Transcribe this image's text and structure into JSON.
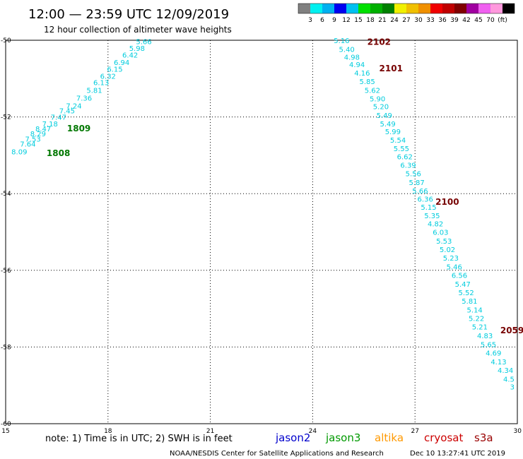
{
  "header": {
    "title": "12:00 — 23:59 UTC 12/09/2019",
    "subtitle": "12 hour collection of altimeter wave heights"
  },
  "colorbar": {
    "colors": [
      "#808080",
      "#00f0f0",
      "#00b0f0",
      "#0000f0",
      "#00c0f0",
      "#00e000",
      "#00b000",
      "#008000",
      "#f0f000",
      "#f0c000",
      "#f09000",
      "#f00000",
      "#c00000",
      "#800000",
      "#a000a0",
      "#f060f0",
      "#ff99dd",
      "#000000"
    ],
    "labels": [
      "3",
      "6",
      "9",
      "12",
      "15",
      "18",
      "21",
      "24",
      "27",
      "30",
      "33",
      "36",
      "39",
      "42",
      "45",
      "70",
      "(ft)"
    ]
  },
  "note": "note: 1) Time is in UTC; 2) SWH is in feet",
  "satellites": [
    {
      "name": "jason2",
      "color": "#0000cc"
    },
    {
      "name": "jason3",
      "color": "#009900"
    },
    {
      "name": "altika",
      "color": "#ff9900"
    },
    {
      "name": "cryosat",
      "color": "#cc0000"
    },
    {
      "name": "s3a",
      "color": "#990000"
    }
  ],
  "footer": {
    "credit": "NOAA/NESDIS Center for Satellite Applications and Research",
    "timestamp": "Dec 10 13:27:41 UTC 2019"
  },
  "chart_data": {
    "type": "scatter",
    "x_ticks": [
      "15",
      "18",
      "21",
      "24",
      "27",
      "30"
    ],
    "y_ticks": [
      "-50",
      "-52",
      "-54",
      "-56",
      "-58",
      "-60"
    ],
    "xlim": [
      15,
      30
    ],
    "ylim": [
      -60,
      -50
    ],
    "grid": true,
    "track_color": "#00ccdd",
    "series": [
      {
        "points": [
          {
            "x": 15.4,
            "y": -52.9,
            "v": "8.09"
          },
          {
            "x": 15.65,
            "y": -52.7,
            "v": "7.64"
          },
          {
            "x": 15.8,
            "y": -52.57,
            "v": "7.53"
          },
          {
            "x": 15.95,
            "y": -52.43,
            "v": "8.29"
          },
          {
            "x": 16.1,
            "y": -52.3,
            "v": "8.47"
          },
          {
            "x": 16.3,
            "y": -52.17,
            "v": "7.18"
          },
          {
            "x": 16.55,
            "y": -52.0,
            "v": "7.47"
          },
          {
            "x": 16.8,
            "y": -51.83,
            "v": "7.45"
          },
          {
            "x": 17.0,
            "y": -51.7,
            "v": "7.24"
          },
          {
            "x": 17.3,
            "y": -51.5,
            "v": "7.36"
          },
          {
            "x": 17.6,
            "y": -51.3,
            "v": "5.81"
          },
          {
            "x": 17.8,
            "y": -51.1,
            "v": "6.13"
          },
          {
            "x": 18.0,
            "y": -50.93,
            "v": "6.32"
          },
          {
            "x": 18.2,
            "y": -50.75,
            "v": "6.15"
          },
          {
            "x": 18.4,
            "y": -50.57,
            "v": "6.94"
          },
          {
            "x": 18.65,
            "y": -50.38,
            "v": "6.42"
          },
          {
            "x": 18.85,
            "y": -50.2,
            "v": "5.98"
          },
          {
            "x": 19.05,
            "y": -50.03,
            "v": "5.66"
          }
        ]
      },
      {
        "points": [
          {
            "x": 24.85,
            "y": -50.0,
            "v": "5.16"
          },
          {
            "x": 25.0,
            "y": -50.23,
            "v": "5.40"
          },
          {
            "x": 25.15,
            "y": -50.43,
            "v": "4.98"
          },
          {
            "x": 25.3,
            "y": -50.63,
            "v": "4.94"
          },
          {
            "x": 25.45,
            "y": -50.85,
            "v": "4.16"
          },
          {
            "x": 25.6,
            "y": -51.07,
            "v": "5.85"
          },
          {
            "x": 25.75,
            "y": -51.3,
            "v": "5.62"
          },
          {
            "x": 25.9,
            "y": -51.52,
            "v": "5.90"
          },
          {
            "x": 26.0,
            "y": -51.72,
            "v": "5.20"
          },
          {
            "x": 26.1,
            "y": -51.95,
            "v": "5.49"
          },
          {
            "x": 26.2,
            "y": -52.17,
            "v": "5.49"
          },
          {
            "x": 26.35,
            "y": -52.38,
            "v": "5.99"
          },
          {
            "x": 26.5,
            "y": -52.6,
            "v": "5.54"
          },
          {
            "x": 26.6,
            "y": -52.82,
            "v": "5.55"
          },
          {
            "x": 26.7,
            "y": -53.03,
            "v": "6.62"
          },
          {
            "x": 26.8,
            "y": -53.25,
            "v": "6.39"
          },
          {
            "x": 26.95,
            "y": -53.47,
            "v": "5.56"
          },
          {
            "x": 27.05,
            "y": -53.7,
            "v": "5.87"
          },
          {
            "x": 27.15,
            "y": -53.92,
            "v": "5.66"
          },
          {
            "x": 27.3,
            "y": -54.13,
            "v": "6.36"
          },
          {
            "x": 27.4,
            "y": -54.35,
            "v": "5.15"
          },
          {
            "x": 27.5,
            "y": -54.57,
            "v": "5.35"
          },
          {
            "x": 27.6,
            "y": -54.78,
            "v": "4.82"
          },
          {
            "x": 27.75,
            "y": -55.0,
            "v": "6.03"
          },
          {
            "x": 27.85,
            "y": -55.23,
            "v": "5.53"
          },
          {
            "x": 27.95,
            "y": -55.45,
            "v": "5.02"
          },
          {
            "x": 28.05,
            "y": -55.67,
            "v": "5.23"
          },
          {
            "x": 28.15,
            "y": -55.9,
            "v": "5.46"
          },
          {
            "x": 28.3,
            "y": -56.12,
            "v": "6.56"
          },
          {
            "x": 28.4,
            "y": -56.35,
            "v": "5.47"
          },
          {
            "x": 28.5,
            "y": -56.57,
            "v": "5.52"
          },
          {
            "x": 28.6,
            "y": -56.8,
            "v": "5.81"
          },
          {
            "x": 28.75,
            "y": -57.03,
            "v": "5.14"
          },
          {
            "x": 28.8,
            "y": -57.25,
            "v": "5.22"
          },
          {
            "x": 28.9,
            "y": -57.47,
            "v": "5.21"
          },
          {
            "x": 29.05,
            "y": -57.7,
            "v": "4.83"
          },
          {
            "x": 29.15,
            "y": -57.93,
            "v": "5.65"
          },
          {
            "x": 29.3,
            "y": -58.15,
            "v": "4.69"
          },
          {
            "x": 29.45,
            "y": -58.38,
            "v": "4.13"
          },
          {
            "x": 29.65,
            "y": -58.6,
            "v": "4.34"
          },
          {
            "x": 29.75,
            "y": -58.83,
            "v": "4.5"
          },
          {
            "x": 29.85,
            "y": -59.03,
            "v": "3"
          }
        ]
      }
    ],
    "time_labels": [
      {
        "text": "1808",
        "x": 16.2,
        "y": -52.93,
        "color": "#007700"
      },
      {
        "text": "1809",
        "x": 16.8,
        "y": -52.28,
        "color": "#007700"
      },
      {
        "text": "2102",
        "x": 25.6,
        "y": -50.03,
        "color": "#770000"
      },
      {
        "text": "2101",
        "x": 25.95,
        "y": -50.72,
        "color": "#770000"
      },
      {
        "text": "2100",
        "x": 27.6,
        "y": -54.2,
        "color": "#770000"
      },
      {
        "text": "2059",
        "x": 29.5,
        "y": -57.55,
        "color": "#770000"
      }
    ]
  }
}
